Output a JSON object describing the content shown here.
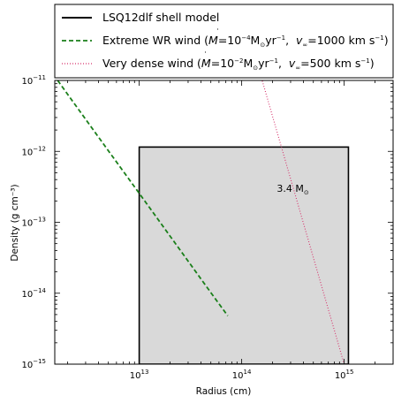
{
  "chart_data": {
    "type": "line",
    "xlabel": "Radius (cm)",
    "ylabel": "Density (g cm⁻³)",
    "x_scale": "log",
    "y_scale": "log",
    "xlim": [
      1500000000000.0,
      3000000000000000.0
    ],
    "ylim": [
      1e-15,
      1e-11
    ],
    "x_ticks": [
      {
        "base": "10",
        "exp": "13"
      },
      {
        "base": "10",
        "exp": "14"
      },
      {
        "base": "10",
        "exp": "15"
      }
    ],
    "y_ticks": [
      {
        "base": "10",
        "exp": "−11",
        "value": 1e-11
      },
      {
        "base": "10",
        "exp": "−12",
        "value": 1e-12
      },
      {
        "base": "10",
        "exp": "−13",
        "value": 1e-13
      },
      {
        "base": "10",
        "exp": "−14",
        "value": 1e-14
      },
      {
        "base": "10",
        "exp": "−15",
        "value": 1e-15
      }
    ],
    "grid": false,
    "legend_position": "top",
    "legend": [
      {
        "label": "LSQ12dlf shell model",
        "color": "#000000",
        "style": "solid"
      },
      {
        "label_parts": [
          "Extreme WR wind (",
          "M",
          "=10",
          "−4",
          "M",
          "⊙",
          "yr",
          "−1",
          ",  ",
          "v",
          "∞",
          "=1000 km s",
          "−1",
          ")"
        ],
        "color": "#1a7f1a",
        "style": "dashed"
      },
      {
        "label_parts": [
          "Very dense wind (",
          "M",
          "=10",
          "−2",
          "M",
          "⊙",
          "yr",
          "−1",
          ",  ",
          "v",
          "∞",
          "=500 km s",
          "−1",
          ")"
        ],
        "color": "#d6336c",
        "style": "dotted"
      }
    ],
    "series": [
      {
        "name": "LSQ12dlf shell model",
        "kind": "box",
        "x": [
          10000000000000.0,
          1100000000000000.0
        ],
        "y": [
          1e-15,
          1.15e-12
        ],
        "fill": "#d9d9d9",
        "color": "#000000",
        "annotation": {
          "text_parts": [
            "3.4 M",
            "⊙"
          ],
          "x": 220000000000000.0,
          "y": 2.7e-13
        }
      },
      {
        "name": "Extreme WR wind",
        "kind": "power-law",
        "x": [
          1600000000000.0,
          2000000000000.0,
          3000000000000.0,
          5000000000000.0,
          10000000000000.0,
          20000000000000.0,
          50000000000000.0,
          73000000000000.0
        ],
        "y": [
          1e-11,
          6.4e-12,
          2.84e-12,
          1.02e-12,
          2.56e-13,
          6.4e-14,
          1.02e-14,
          4.8e-15
        ],
        "color": "#1a7f1a",
        "style": "dashed"
      },
      {
        "name": "Very dense wind",
        "kind": "power-law",
        "x": [
          100000000000000.0,
          1000000000000000.0
        ],
        "y": [
          1e-10,
          1e-15
        ],
        "color": "#d6336c",
        "style": "dotted"
      }
    ]
  }
}
